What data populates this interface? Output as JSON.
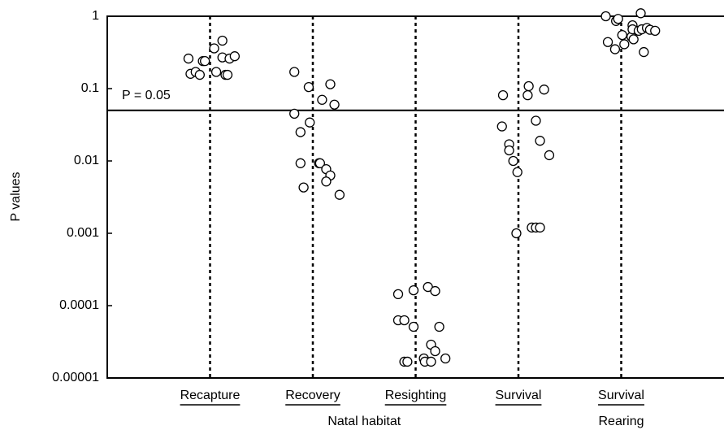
{
  "chart_data": {
    "type": "strip",
    "y_label": "P values",
    "log_y": true,
    "ylim": [
      1e-05,
      1
    ],
    "yticks": [
      1,
      0.1,
      0.01,
      0.001,
      {
        "value": 0.0001,
        "label": "0.0001"
      },
      {
        "value": 1e-05,
        "label": "0.00001"
      }
    ],
    "xlim": [
      0,
      6
    ],
    "reference_line": {
      "value": 0.05,
      "label": "P = 0.05"
    },
    "groups": [
      {
        "label": "Natal habitat",
        "categories": [
          "Recapture",
          "Recovery",
          "Resighting",
          "Survival"
        ]
      },
      {
        "label": "Rearing",
        "categories": [
          "Survival"
        ]
      }
    ],
    "color": "#000000",
    "series": [
      {
        "x": [
          0.79,
          0.81,
          0.86,
          0.9,
          0.93,
          0.95,
          1.04,
          1.12,
          1.06,
          1.12,
          1.15,
          1.17,
          1.19,
          1.24
        ],
        "values": [
          0.26,
          0.16,
          0.17,
          0.155,
          0.24,
          0.24,
          0.36,
          0.46,
          0.17,
          0.27,
          0.155,
          0.155,
          0.26,
          0.28
        ]
      },
      {
        "x": [
          1.82,
          1.96,
          2.17,
          2.09,
          2.21,
          1.82,
          1.97,
          1.88,
          1.88,
          2.06,
          2.07,
          2.13,
          2.17,
          2.13,
          1.91,
          2.26
        ],
        "values": [
          0.17,
          0.105,
          0.115,
          0.07,
          0.06,
          0.045,
          0.034,
          0.025,
          0.0093,
          0.0093,
          0.0093,
          0.0077,
          0.0063,
          0.0052,
          0.0043,
          0.0034
        ]
      },
      {
        "x": [
          2.83,
          2.98,
          3.12,
          3.19,
          2.83,
          2.89,
          2.98,
          3.23,
          3.15,
          3.19,
          3.29,
          3.08,
          3.09,
          3.15,
          2.89,
          2.92
        ],
        "values": [
          0.000144,
          0.000163,
          0.000181,
          0.000159,
          6.28e-05,
          6.28e-05,
          5.1e-05,
          5.1e-05,
          2.89e-05,
          2.35e-05,
          1.86e-05,
          1.86e-05,
          1.68e-05,
          1.68e-05,
          1.68e-05,
          1.68e-05
        ]
      },
      {
        "x": [
          3.85,
          4.1,
          4.25,
          4.09,
          3.84,
          3.91,
          3.91,
          3.95,
          3.99,
          4.17,
          4.21,
          4.3,
          3.98,
          4.13,
          4.17,
          4.21
        ],
        "values": [
          0.081,
          0.108,
          0.097,
          0.081,
          0.03,
          0.017,
          0.014,
          0.01,
          0.007,
          0.036,
          0.019,
          0.012,
          0.001,
          0.0012,
          0.0012,
          0.0012
        ]
      },
      {
        "x": [
          4.85,
          5.19,
          4.95,
          4.97,
          5.11,
          4.87,
          5.01,
          5.1,
          5.11,
          5.17,
          5.2,
          5.25,
          5.28,
          5.33,
          4.94,
          5.03,
          5.12,
          5.22
        ],
        "values": [
          1.0,
          1.1,
          0.86,
          0.92,
          0.75,
          0.44,
          0.55,
          0.52,
          0.66,
          0.63,
          0.66,
          0.69,
          0.65,
          0.63,
          0.35,
          0.41,
          0.48,
          0.32
        ]
      }
    ]
  }
}
